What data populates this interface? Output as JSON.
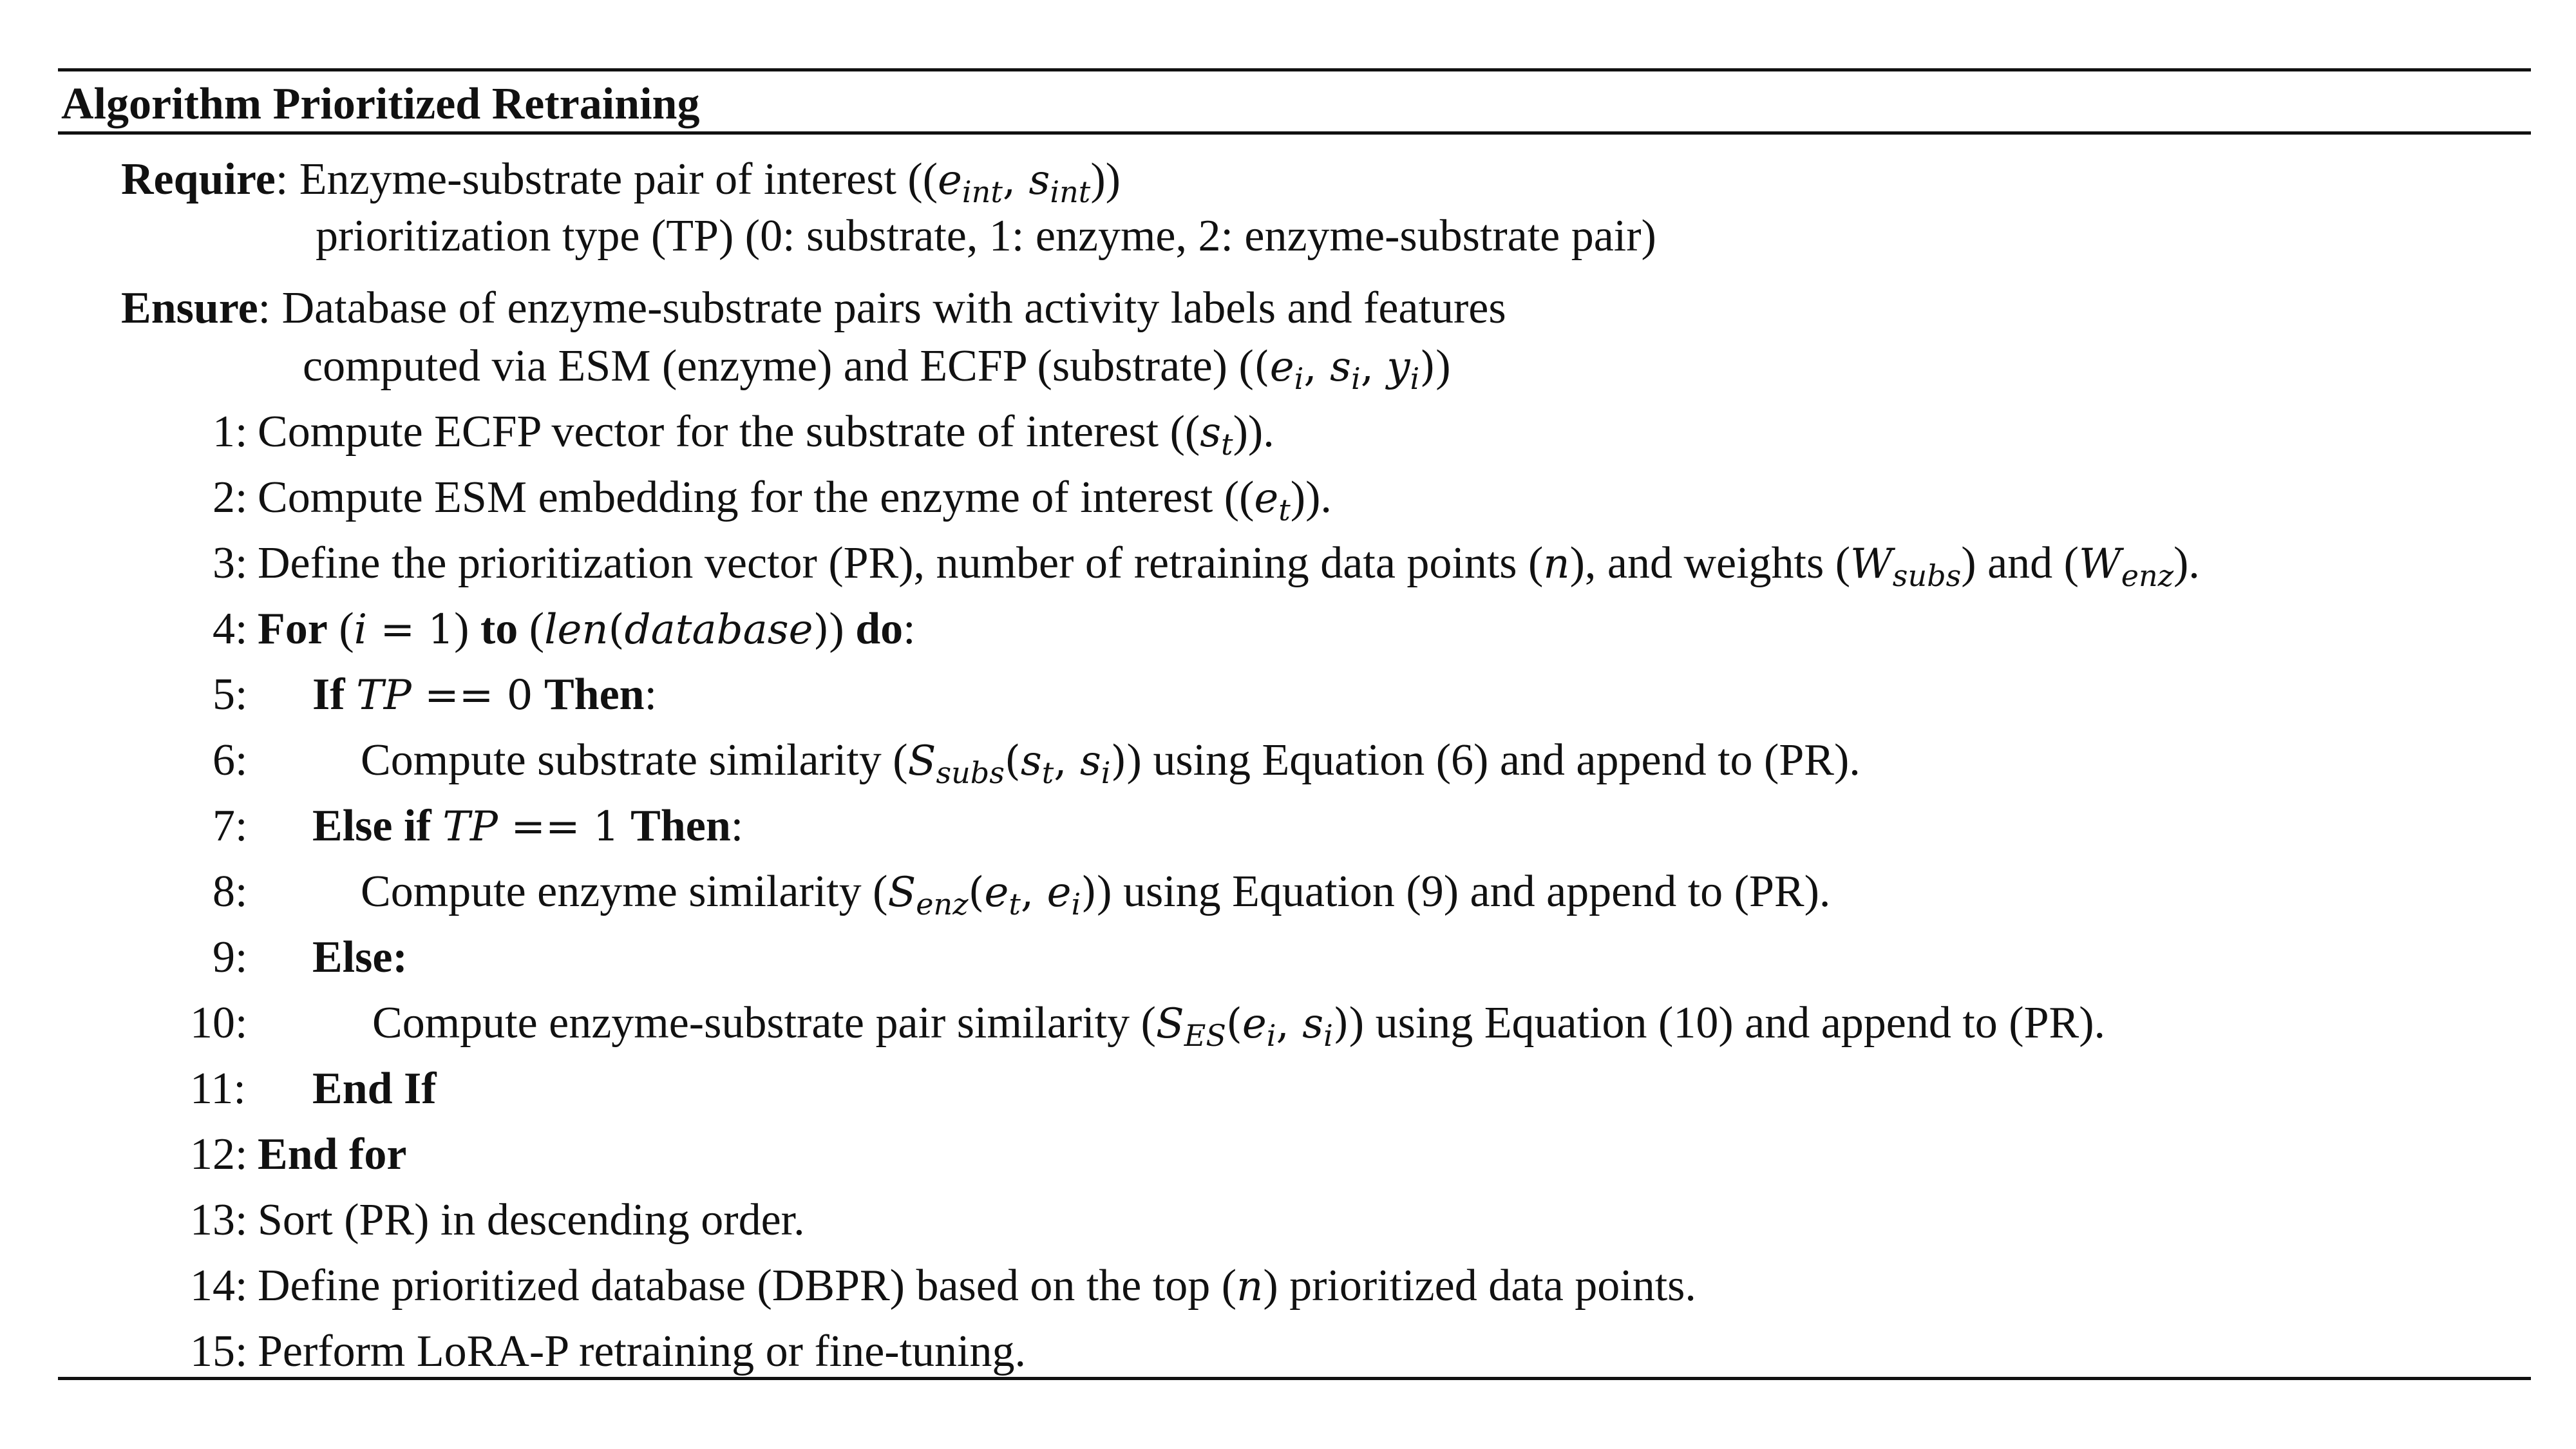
{
  "algorithm": {
    "title": "Algorithm Prioritized Retraining",
    "require_label": "Require",
    "require_line1_text": "Enzyme-substrate pair of interest ((",
    "require_line2": "prioritization type (TP) (0: substrate, 1: enzyme, 2: enzyme-substrate pair)",
    "ensure_label": "Ensure",
    "ensure_line1": "Database of enzyme-substrate pairs with activity labels and features",
    "ensure_line2_text": "computed via ESM (enzyme) and ECFP (substrate) (",
    "steps": [
      {
        "num": "1:",
        "text": "Compute ECFP vector for the substrate of interest (("
      },
      {
        "num": "2:",
        "text": "Compute ESM embedding for the enzyme of interest (("
      },
      {
        "num": "3:",
        "text": "Define the prioritization vector (PR), number of retraining data points (",
        "text2": "), and weights (",
        "text3": ") and (",
        "text4": ")."
      },
      {
        "num": "4:",
        "kw1": "For",
        "kw2": "to",
        "kw3": "do",
        "tail": ":"
      },
      {
        "num": "5:",
        "kw1": "If",
        "kw2": "Then",
        "tail": ":"
      },
      {
        "num": "6:",
        "text": "Compute substrate similarity (",
        "text2": ") using Equation (6) and append to (PR)."
      },
      {
        "num": "7:",
        "kw1": "Else if",
        "kw2": "Then",
        "tail": ":"
      },
      {
        "num": "8:",
        "text": "Compute enzyme similarity (",
        "text2": ") using Equation (9) and append to (PR)."
      },
      {
        "num": "9:",
        "kw1": "Else:"
      },
      {
        "num": "10:",
        "text": "Compute enzyme-substrate pair similarity (",
        "text2": ") using Equation (10) and append to (PR)."
      },
      {
        "num": "11:",
        "kw1": "End If"
      },
      {
        "num": "12:",
        "kw1": "End for"
      },
      {
        "num": "13:",
        "text": "Sort (PR) in descending order."
      },
      {
        "num": "14:",
        "text": "Define prioritized database (DBPR) based on the top (",
        "text2": ") prioritized data points."
      },
      {
        "num": "15:",
        "text": "Perform LoRA-P retraining or fine-tuning."
      }
    ]
  }
}
